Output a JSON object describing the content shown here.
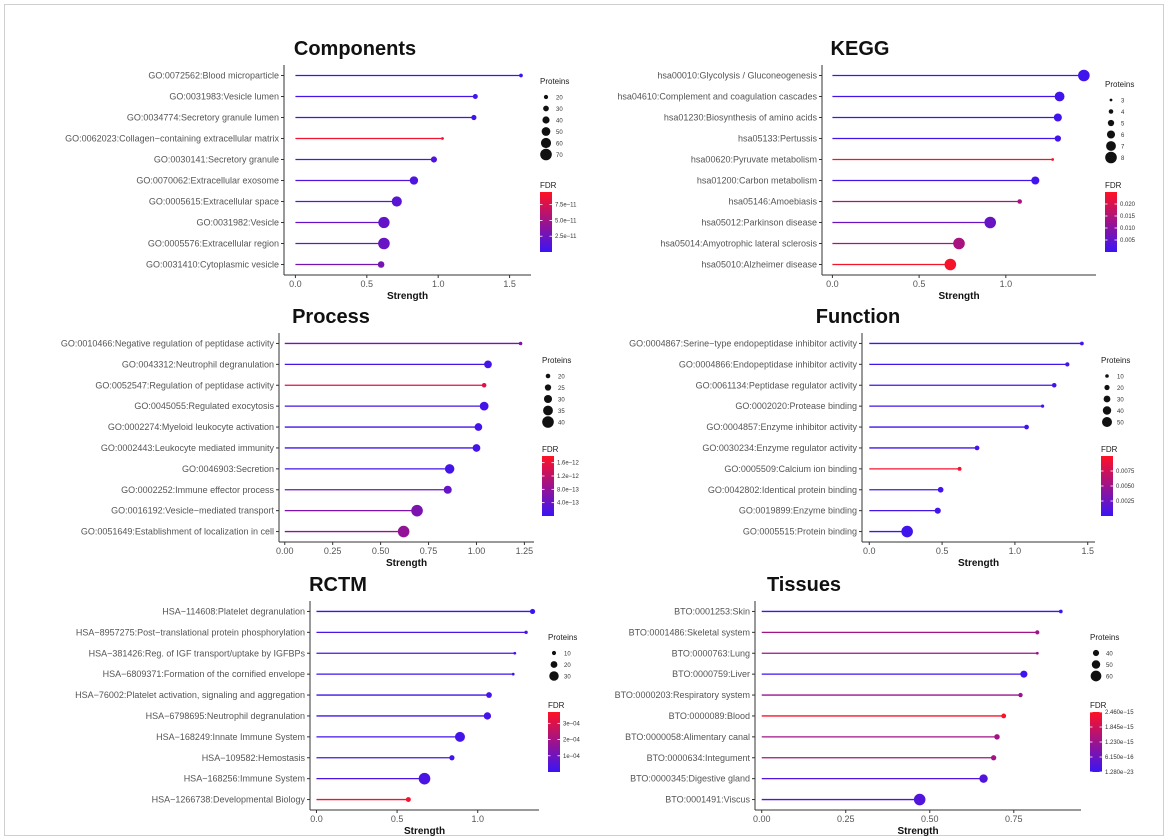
{
  "chart_data": [
    {
      "type": "lollipop",
      "title": "Components",
      "xlabel": "Strength",
      "xlim": [
        -0.08,
        1.65
      ],
      "xticks": [
        "0.0",
        "0.5",
        "1.0",
        "1.5"
      ],
      "xtick_values": [
        0,
        0.5,
        1.0,
        1.5
      ],
      "categories": [
        "GO:0072562:Blood microparticle",
        "GO:0031983:Vesicle lumen",
        "GO:0034774:Secretory granule lumen",
        "GO:0062023:Collagen−containing extracellular matrix",
        "GO:0030141:Secretory granule",
        "GO:0070062:Extracellular exosome",
        "GO:0005615:Extracellular space",
        "GO:0031982:Vesicle",
        "GO:0005576:Extracellular region",
        "GO:0031410:Cytoplasmic vesicle"
      ],
      "strength": [
        1.58,
        1.26,
        1.25,
        1.03,
        0.97,
        0.83,
        0.71,
        0.62,
        0.62,
        0.6
      ],
      "proteins": [
        16,
        25,
        26,
        10,
        33,
        48,
        60,
        68,
        70,
        36
      ],
      "fdr": [
        1e-12,
        5e-12,
        4e-12,
        9e-11,
        1e-11,
        1e-11,
        1.5e-11,
        2e-11,
        2.2e-11,
        3e-11
      ],
      "size_legend": {
        "title": "Proteins",
        "labels": [
          "20",
          "30",
          "40",
          "50",
          "60",
          "70"
        ],
        "values": [
          20,
          30,
          40,
          50,
          60,
          70
        ],
        "range": [
          10,
          70
        ]
      },
      "color_legend": {
        "title": "FDR",
        "labels": [
          "7.5e−11",
          "5.0e−11",
          "2.5e−11"
        ],
        "values": [
          7.5e-11,
          5e-11,
          2.5e-11
        ],
        "range": [
          0,
          9.5e-11
        ]
      }
    },
    {
      "type": "lollipop",
      "title": "KEGG",
      "xlabel": "Strength",
      "xlim": [
        -0.06,
        1.52
      ],
      "xticks": [
        "0.0",
        "0.5",
        "1.0"
      ],
      "xtick_values": [
        0,
        0.5,
        1.0
      ],
      "categories": [
        "hsa00010:Glycolysis / Gluconeogenesis",
        "hsa04610:Complement and coagulation cascades",
        "hsa01230:Biosynthesis of amino acids",
        "hsa05133:Pertussis",
        "hsa00620:Pyruvate metabolism",
        "hsa01200:Carbon metabolism",
        "hsa05146:Amoebiasis",
        "hsa05012:Parkinson disease",
        "hsa05014:Amyotrophic lateral sclerosis",
        "hsa05010:Alzheimer disease"
      ],
      "strength": [
        1.45,
        1.31,
        1.3,
        1.3,
        1.27,
        1.17,
        1.08,
        0.91,
        0.73,
        0.68
      ],
      "proteins": [
        8,
        7,
        6,
        5,
        3,
        6,
        4,
        8,
        8,
        8
      ],
      "fdr": [
        0.001,
        0.001,
        0.001,
        0.001,
        0.024,
        0.001,
        0.014,
        0.006,
        0.014,
        0.024
      ],
      "size_legend": {
        "title": "Proteins",
        "labels": [
          "3",
          "4",
          "5",
          "6",
          "7",
          "8"
        ],
        "values": [
          3,
          4,
          5,
          6,
          7,
          8
        ],
        "range": [
          3,
          8
        ]
      },
      "color_legend": {
        "title": "FDR",
        "labels": [
          "0.020",
          "0.015",
          "0.010",
          "0.005"
        ],
        "values": [
          0.02,
          0.015,
          0.01,
          0.005
        ],
        "range": [
          0,
          0.025
        ]
      }
    },
    {
      "type": "lollipop",
      "title": "Process",
      "xlabel": "Strength",
      "xlim": [
        -0.03,
        1.3
      ],
      "xticks": [
        "0.00",
        "0.25",
        "0.50",
        "0.75",
        "1.00",
        "1.25"
      ],
      "xtick_values": [
        0,
        0.25,
        0.5,
        0.75,
        1.0,
        1.25
      ],
      "categories": [
        "GO:0010466:Negative regulation of peptidase activity",
        "GO:0043312:Neutrophil degranulation",
        "GO:0052547:Regulation of peptidase activity",
        "GO:0045055:Regulated exocytosis",
        "GO:0002274:Myeloid leukocyte activation",
        "GO:0002443:Leukocyte mediated immunity",
        "GO:0046903:Secretion",
        "GO:0002252:Immune effector process",
        "GO:0016192:Vesicle−mediated transport",
        "GO:0051649:Establishment of localization in cell"
      ],
      "strength": [
        1.23,
        1.06,
        1.04,
        1.04,
        1.01,
        1.0,
        0.86,
        0.85,
        0.69,
        0.62
      ],
      "proteins": [
        17,
        29,
        20,
        32,
        29,
        29,
        34,
        30,
        40,
        40
      ],
      "fdr": [
        6e-13,
        1e-13,
        1.5e-12,
        1e-13,
        1e-13,
        1e-13,
        1e-13,
        4e-13,
        6e-13,
        8e-13
      ],
      "size_legend": {
        "title": "Proteins",
        "labels": [
          "20",
          "25",
          "30",
          "35",
          "40"
        ],
        "values": [
          20,
          25,
          30,
          35,
          40
        ],
        "range": [
          15,
          40
        ]
      },
      "color_legend": {
        "title": "FDR",
        "labels": [
          "1.6e−12",
          "1.2e−12",
          "8.0e−13",
          "4.0e−13"
        ],
        "values": [
          1.6e-12,
          1.2e-12,
          8e-13,
          4e-13
        ],
        "range": [
          0,
          1.8e-12
        ]
      }
    },
    {
      "type": "lollipop",
      "title": "Function",
      "xlabel": "Strength",
      "xlim": [
        -0.05,
        1.55
      ],
      "xticks": [
        "0.0",
        "0.5",
        "1.0",
        "1.5"
      ],
      "xtick_values": [
        0,
        0.5,
        1.0,
        1.5
      ],
      "categories": [
        "GO:0004867:Serine−type endopeptidase inhibitor activity",
        "GO:0004866:Endopeptidase inhibitor activity",
        "GO:0061134:Peptidase regulator activity",
        "GO:0002020:Protease binding",
        "GO:0004857:Enzyme inhibitor activity",
        "GO:0030234:Enzyme regulator activity",
        "GO:0005509:Calcium ion binding",
        "GO:0042802:Identical protein binding",
        "GO:0019899:Enzyme binding",
        "GO:0005515:Protein binding"
      ],
      "strength": [
        1.46,
        1.36,
        1.27,
        1.19,
        1.08,
        0.74,
        0.62,
        0.49,
        0.47,
        0.26
      ],
      "proteins": [
        11,
        14,
        16,
        8,
        17,
        17,
        12,
        23,
        26,
        60
      ],
      "fdr": [
        0.0005,
        0.0004,
        0.0004,
        0.0005,
        0.0004,
        0.0005,
        0.0095,
        0.0005,
        0.0005,
        0.0004
      ],
      "size_legend": {
        "title": "Proteins",
        "labels": [
          "10",
          "20",
          "30",
          "40",
          "50"
        ],
        "values": [
          10,
          20,
          30,
          40,
          50
        ],
        "range": [
          5,
          60
        ]
      },
      "color_legend": {
        "title": "FDR",
        "labels": [
          "0.0075",
          "0.0050",
          "0.0025"
        ],
        "values": [
          0.0075,
          0.005,
          0.0025
        ],
        "range": [
          0,
          0.01
        ]
      }
    },
    {
      "type": "lollipop",
      "title": "RCTM",
      "xlabel": "Strength",
      "xlim": [
        -0.04,
        1.38
      ],
      "xticks": [
        "0.0",
        "0.5",
        "1.0"
      ],
      "xtick_values": [
        0,
        0.5,
        1.0
      ],
      "categories": [
        "HSA−114608:Platelet degranulation",
        "HSA−8957275:Post−translational protein phosphorylation",
        "HSA−381426:Reg. of IGF transport/uptake by IGFBPs",
        "HSA−6809371:Formation of the cornified envelope",
        "HSA−76002:Platelet activation, signaling and aggregation",
        "HSA−6798695:Neutrophil degranulation",
        "HSA−168249:Innate Immune System",
        "HSA−109582:Hemostasis",
        "HSA−168256:Immune System",
        "HSA−1266738:Developmental Biology"
      ],
      "strength": [
        1.34,
        1.3,
        1.23,
        1.22,
        1.07,
        1.06,
        0.89,
        0.84,
        0.67,
        0.57
      ],
      "proteins": [
        14,
        7,
        5,
        5,
        16,
        22,
        32,
        14,
        38,
        13
      ],
      "fdr": [
        0.0,
        3e-05,
        3e-05,
        1e-05,
        2e-05,
        2e-05,
        2e-05,
        2e-05,
        3e-05,
        0.00035
      ],
      "size_legend": {
        "title": "Proteins",
        "labels": [
          "10",
          "20",
          "30"
        ],
        "values": [
          10,
          20,
          30
        ],
        "range": [
          5,
          38
        ]
      },
      "color_legend": {
        "title": "FDR",
        "labels": [
          "3e−04",
          "2e−04",
          "1e−04"
        ],
        "values": [
          0.0003,
          0.0002,
          0.0001
        ],
        "range": [
          0,
          0.00037
        ]
      }
    },
    {
      "type": "lollipop",
      "title": "Tissues",
      "xlabel": "Strength",
      "xlim": [
        -0.02,
        0.95
      ],
      "xticks": [
        "0.00",
        "0.25",
        "0.50",
        "0.75"
      ],
      "xtick_values": [
        0,
        0.25,
        0.5,
        0.75
      ],
      "categories": [
        "BTO:0001253:Skin",
        "BTO:0001486:Skeletal system",
        "BTO:0000763:Lung",
        "BTO:0000759:Liver",
        "BTO:0000203:Respiratory system",
        "BTO:0000089:Blood",
        "BTO:0000058:Alimentary canal",
        "BTO:0000634:Integument",
        "BTO:0000345:Digestive gland",
        "BTO:0001491:Viscus"
      ],
      "strength": [
        0.89,
        0.82,
        0.82,
        0.78,
        0.77,
        0.72,
        0.7,
        0.69,
        0.66,
        0.47
      ],
      "proteins": [
        29,
        31,
        25,
        44,
        32,
        34,
        37,
        36,
        50,
        64
      ],
      "fdr": [
        5e-17,
        1.3e-15,
        1.2e-15,
        5e-17,
        1.2e-15,
        2.4e-15,
        1.3e-15,
        1.3e-15,
        3e-16,
        3e-16
      ],
      "size_legend": {
        "title": "Proteins",
        "labels": [
          "40",
          "50",
          "60"
        ],
        "values": [
          40,
          50,
          60
        ],
        "range": [
          25,
          64
        ]
      },
      "color_legend": {
        "title": "FDR",
        "labels": [
          "2.460e−15",
          "1.845e−15",
          "1.230e−15",
          "6.150e−16",
          "1.280e−23"
        ],
        "values": [
          2.46e-15,
          1.845e-15,
          1.23e-15,
          6.15e-16,
          1.28e-23
        ],
        "range": [
          0,
          2.46e-15
        ]
      }
    }
  ],
  "colors": {
    "fdr_low": "#3a14f5",
    "fdr_high": "#ff1020",
    "axis": "#333333",
    "line": "#555555"
  }
}
